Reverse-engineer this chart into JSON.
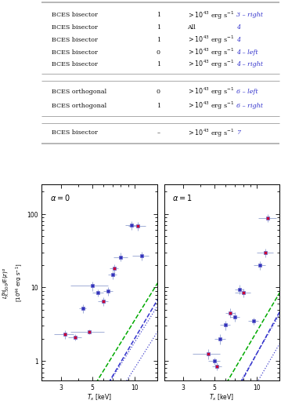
{
  "table_rows1": [
    {
      "method": "BCES bisector",
      "alpha": "1",
      "cut": ">10^{43}",
      "fig": "3",
      "suffix": "– right"
    },
    {
      "method": "BCES bisector",
      "alpha": "1",
      "cut": "All",
      "fig": "4",
      "suffix": ""
    },
    {
      "method": "BCES bisector",
      "alpha": "1",
      "cut": ">10^{43}",
      "fig": "4",
      "suffix": ""
    },
    {
      "method": "BCES bisector",
      "alpha": "0",
      "cut": ">10^{43}",
      "fig": "4",
      "suffix": "– left"
    },
    {
      "method": "BCES bisector",
      "alpha": "1",
      "cut": ">10^{43}",
      "fig": "4",
      "suffix": "– right"
    }
  ],
  "table_rows2": [
    {
      "method": "BCES orthogonal",
      "alpha": "0",
      "cut": ">10^{43}",
      "fig": "6",
      "suffix": "– left"
    },
    {
      "method": "BCES orthogonal",
      "alpha": "1",
      "cut": ">10^{43}",
      "fig": "6",
      "suffix": "– right"
    }
  ],
  "table_rows3": [
    {
      "method": "BCES bisector",
      "alpha": "–",
      "cut": ">10^{43}",
      "fig": "7",
      "suffix": ""
    }
  ],
  "alpha0_data": {
    "x": [
      3.2,
      3.8,
      4.3,
      4.8,
      5.0,
      5.5,
      6.0,
      6.5,
      7.0,
      7.2,
      8.0,
      9.5,
      10.5,
      11.2
    ],
    "y": [
      2.3,
      2.1,
      5.2,
      2.5,
      10.5,
      8.5,
      6.5,
      9.0,
      15.0,
      18.0,
      26.0,
      70.0,
      68.0,
      27.0
    ],
    "xerr": [
      0.5,
      0.4,
      0.25,
      1.3,
      1.5,
      0.5,
      0.5,
      0.5,
      0.5,
      0.5,
      0.9,
      0.9,
      1.5,
      1.5
    ],
    "yerr": [
      0.3,
      0.2,
      0.7,
      0.2,
      1.5,
      1.0,
      0.9,
      1.2,
      2.0,
      2.5,
      3.5,
      9.0,
      9.0,
      3.5
    ],
    "fc": [
      "#cc0033",
      "#cc0033",
      "#3333bb",
      "#cc0033",
      "#3333bb",
      "#3333bb",
      "#cc0033",
      "#3333bb",
      "#3333bb",
      "#cc0033",
      "#3333bb",
      "#3333bb",
      "#cc0033",
      "#3333bb"
    ],
    "ec": [
      "#6666cc",
      "#6666cc",
      "#6666cc",
      "#6666cc",
      "#6666cc",
      "#6666cc",
      "#6666cc",
      "#6666cc",
      "#6666cc",
      "#6666cc",
      "#6666cc",
      "#6666cc",
      "#6666cc",
      "#6666cc"
    ]
  },
  "alpha1_data": {
    "x": [
      4.5,
      5.0,
      5.2,
      5.5,
      6.0,
      6.5,
      7.0,
      7.5,
      8.0,
      9.5,
      10.5,
      11.5,
      12.0
    ],
    "y": [
      1.25,
      1.0,
      0.85,
      2.0,
      3.1,
      4.5,
      4.0,
      9.5,
      8.5,
      3.5,
      20.0,
      30.0,
      88.0
    ],
    "xerr": [
      1.0,
      0.5,
      0.4,
      0.5,
      0.5,
      0.5,
      0.5,
      0.5,
      1.0,
      0.8,
      1.0,
      1.5,
      1.8
    ],
    "yerr": [
      0.2,
      0.12,
      0.1,
      0.3,
      0.45,
      0.65,
      0.55,
      1.4,
      1.1,
      0.4,
      2.8,
      4.0,
      11.0
    ],
    "fc": [
      "#cc0033",
      "#3333bb",
      "#cc0033",
      "#3333bb",
      "#3333bb",
      "#cc0033",
      "#3333bb",
      "#3333bb",
      "#cc0033",
      "#3333bb",
      "#3333bb",
      "#cc0033",
      "#cc0033"
    ],
    "ec": [
      "#6666cc",
      "#6666cc",
      "#6666cc",
      "#6666cc",
      "#6666cc",
      "#6666cc",
      "#6666cc",
      "#6666cc",
      "#6666cc",
      "#6666cc",
      "#6666cc",
      "#6666cc",
      "#6666cc"
    ]
  },
  "lines_alpha0": [
    {
      "A": -2.8,
      "B": 3.05,
      "color": "#4444cc",
      "ls": "dotted",
      "lw": 0.9
    },
    {
      "A": -3.15,
      "B": 3.05,
      "color": "#4444cc",
      "ls": "dotted",
      "lw": 0.9
    },
    {
      "A": -2.95,
      "B": 3.25,
      "color": "#3333cc",
      "ls": "dashed",
      "lw": 1.1
    },
    {
      "A": -2.55,
      "B": 3.1,
      "color": "#00aa00",
      "ls": "dashed",
      "lw": 1.1
    }
  ],
  "lines_alpha1": [
    {
      "A": -3.2,
      "B": 3.3,
      "color": "#4444cc",
      "ls": "dotted",
      "lw": 0.9
    },
    {
      "A": -3.6,
      "B": 3.3,
      "color": "#4444cc",
      "ls": "dotted",
      "lw": 0.9
    },
    {
      "A": -3.4,
      "B": 3.5,
      "color": "#3333cc",
      "ls": "dashed",
      "lw": 1.1
    },
    {
      "A": -2.85,
      "B": 3.25,
      "color": "#00aa00",
      "ls": "dashed",
      "lw": 1.1
    }
  ],
  "xlim": [
    2.2,
    14.5
  ],
  "ylim": [
    0.55,
    250.0
  ],
  "xfit_min": 2.0,
  "xfit_max": 16.0,
  "xticks": [
    3,
    5,
    10
  ],
  "yticks": [
    1,
    10,
    100
  ],
  "fig_label_color": "#3333cc",
  "table_text_color": "#111111",
  "line_color": "#aaaaaa",
  "bg_color": "#ffffff"
}
